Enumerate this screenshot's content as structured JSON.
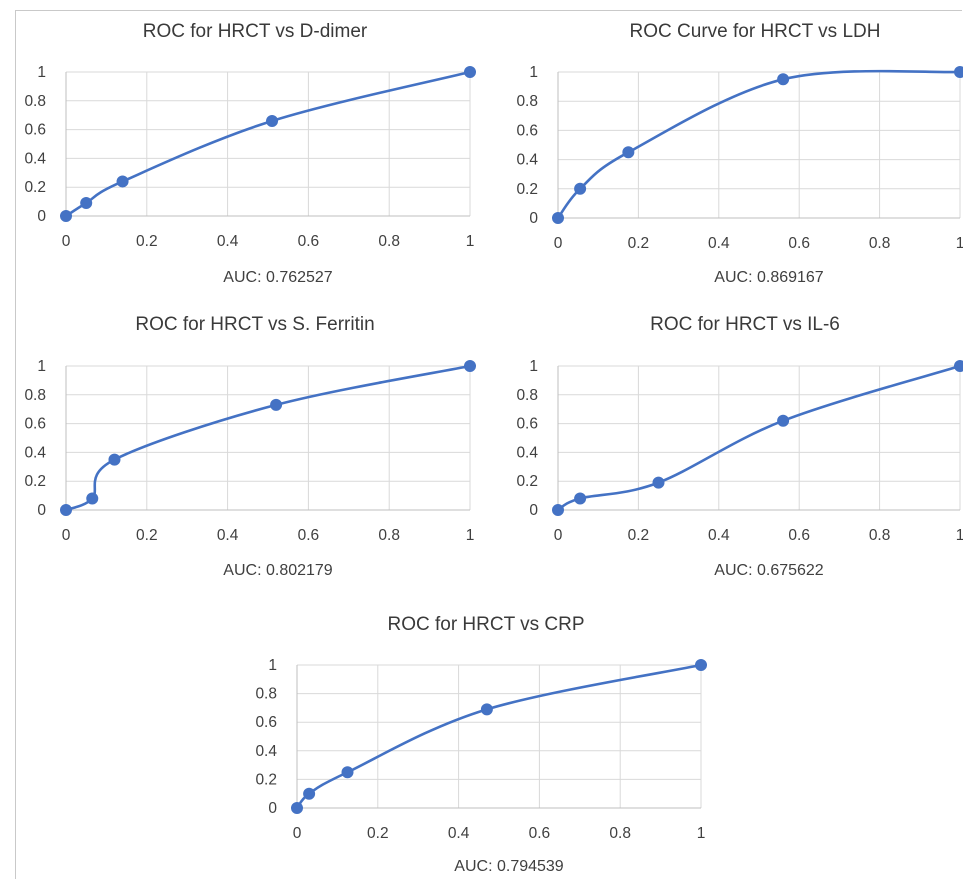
{
  "chart_data": [
    {
      "type": "line",
      "title": "ROC for HRCT vs D-dimer",
      "xlabel": "AUC: 0.762527",
      "ylabel": "",
      "xlim": [
        0,
        1
      ],
      "ylim": [
        0,
        1
      ],
      "x_ticks": [
        "0",
        "0.2",
        "0.4",
        "0.6",
        "0.8",
        "1"
      ],
      "y_ticks": [
        "0",
        "0.2",
        "0.4",
        "0.6",
        "0.8",
        "1"
      ],
      "grid": true,
      "series": [
        {
          "x": [
            0,
            0.05,
            0.14,
            0.51,
            1
          ],
          "y": [
            0,
            0.09,
            0.24,
            0.66,
            1
          ]
        }
      ]
    },
    {
      "type": "line",
      "title": "ROC Curve for HRCT vs LDH",
      "xlabel": "AUC: 0.869167",
      "ylabel": "",
      "xlim": [
        0,
        1
      ],
      "ylim": [
        0,
        1
      ],
      "x_ticks": [
        "0",
        "0.2",
        "0.4",
        "0.6",
        "0.8",
        "1"
      ],
      "y_ticks": [
        "0",
        "0.2",
        "0.4",
        "0.6",
        "0.8",
        "1"
      ],
      "grid": true,
      "series": [
        {
          "x": [
            0,
            0.055,
            0.175,
            0.56,
            1
          ],
          "y": [
            0,
            0.2,
            0.45,
            0.95,
            1
          ]
        }
      ]
    },
    {
      "type": "line",
      "title": "ROC for HRCT vs S. Ferritin",
      "xlabel": "AUC: 0.802179",
      "ylabel": "",
      "xlim": [
        0,
        1
      ],
      "ylim": [
        0,
        1
      ],
      "x_ticks": [
        "0",
        "0.2",
        "0.4",
        "0.6",
        "0.8",
        "1"
      ],
      "y_ticks": [
        "0",
        "0.2",
        "0.4",
        "0.6",
        "0.8",
        "1"
      ],
      "grid": true,
      "series": [
        {
          "x": [
            0,
            0.065,
            0.12,
            0.52,
            1
          ],
          "y": [
            0,
            0.08,
            0.35,
            0.73,
            1
          ]
        }
      ]
    },
    {
      "type": "line",
      "title": "ROC for HRCT vs IL-6",
      "xlabel": "AUC: 0.675622",
      "ylabel": "",
      "xlim": [
        0,
        1
      ],
      "ylim": [
        0,
        1
      ],
      "x_ticks": [
        "0",
        "0.2",
        "0.4",
        "0.6",
        "0.8",
        "1"
      ],
      "y_ticks": [
        "0",
        "0.2",
        "0.4",
        "0.6",
        "0.8",
        "1"
      ],
      "grid": true,
      "series": [
        {
          "x": [
            0,
            0.055,
            0.25,
            0.56,
            1
          ],
          "y": [
            0,
            0.08,
            0.19,
            0.62,
            1
          ]
        }
      ]
    },
    {
      "type": "line",
      "title": "ROC for HRCT vs CRP",
      "xlabel": "AUC: 0.794539",
      "ylabel": "",
      "xlim": [
        0,
        1
      ],
      "ylim": [
        0,
        1
      ],
      "x_ticks": [
        "0",
        "0.2",
        "0.4",
        "0.6",
        "0.8",
        "1"
      ],
      "y_ticks": [
        "0",
        "0.2",
        "0.4",
        "0.6",
        "0.8",
        "1"
      ],
      "grid": true,
      "series": [
        {
          "x": [
            0,
            0.03,
            0.125,
            0.47,
            1
          ],
          "y": [
            0,
            0.1,
            0.25,
            0.69,
            1
          ]
        }
      ]
    }
  ],
  "colors": {
    "series": "#4472c4",
    "grid": "#d9d9d9",
    "axis": "#bfbfbf",
    "text": "#404040"
  }
}
